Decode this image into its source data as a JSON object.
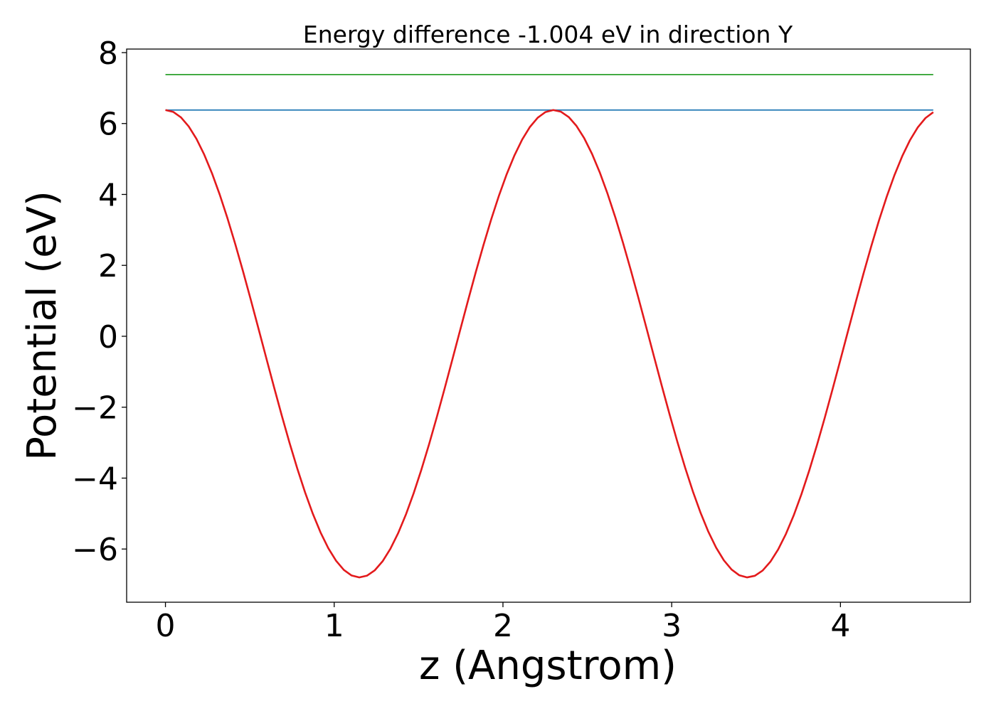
{
  "chart_data": {
    "type": "line",
    "title": "Energy difference -1.004 eV in direction Y",
    "xlabel": "z (Angstrom)",
    "ylabel": "Potential (eV)",
    "xlim": [
      -0.23,
      4.77
    ],
    "ylim": [
      -7.5,
      8.1
    ],
    "xticks": [
      0,
      1,
      2,
      3,
      4
    ],
    "xtick_labels": [
      "0",
      "1",
      "2",
      "3",
      "4"
    ],
    "yticks": [
      -6,
      -4,
      -2,
      0,
      2,
      4,
      6,
      8
    ],
    "ytick_labels": [
      "−6",
      "−4",
      "−2",
      "0",
      "2",
      "4",
      "6",
      "8"
    ],
    "grid": false,
    "legend": false,
    "series": [
      {
        "color": "#2ca02c",
        "style": "flat",
        "x": [
          0,
          4.55
        ],
        "y": [
          7.38,
          7.38
        ]
      },
      {
        "color": "#1f77b4",
        "style": "flat",
        "x": [
          0,
          4.55
        ],
        "y": [
          6.38,
          6.38
        ]
      },
      {
        "color": "#e31a1c",
        "style": "cosine",
        "x_start": 0,
        "x_end": 4.55,
        "period": 2.3,
        "y_max": 6.38,
        "y_min": -6.8,
        "points": 100
      }
    ]
  }
}
